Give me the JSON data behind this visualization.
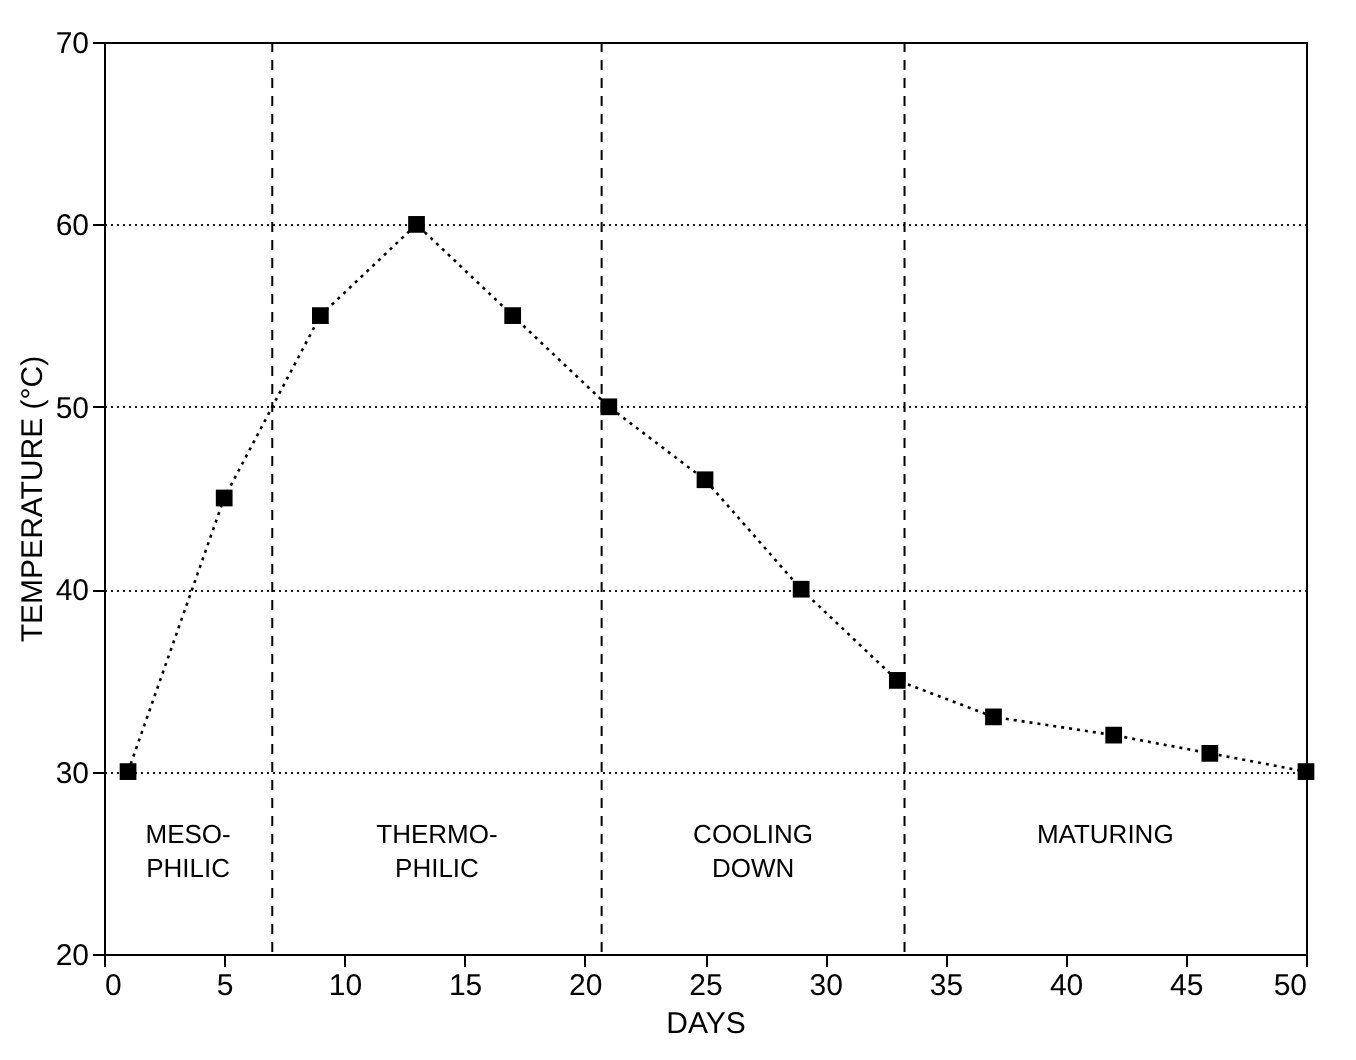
{
  "chart_data": {
    "type": "line",
    "xlabel": "DAYS",
    "ylabel": "TEMPERATURE (°C)",
    "x": [
      1,
      5,
      9,
      13,
      17,
      21,
      25,
      29,
      33,
      37,
      42,
      46,
      50
    ],
    "series": [
      {
        "color": "#000000",
        "values": [
          30,
          45,
          55,
          60,
          55,
          50,
          46,
          40,
          35,
          33,
          32,
          31,
          30
        ]
      }
    ],
    "xlim": [
      0,
      50
    ],
    "xticks": [
      0,
      5,
      10,
      15,
      20,
      25,
      30,
      35,
      40,
      45,
      50
    ],
    "ylim": [
      20,
      70
    ],
    "yticks": [
      20,
      30,
      40,
      50,
      60,
      70
    ],
    "grid": "y",
    "marker": "square",
    "line_style": "dotted",
    "ref_lines": [
      {
        "axis": "x",
        "value": 7,
        "line_style": "dashed"
      },
      {
        "axis": "x",
        "value": 20.7,
        "line_style": "dashed"
      },
      {
        "axis": "x",
        "value": 33.3,
        "line_style": "dashed"
      }
    ],
    "annotations": [
      "MESO-\nPHILIC",
      "THERMO-\nPHILIC",
      "COOLING\nDOWN",
      "MATURING"
    ]
  }
}
